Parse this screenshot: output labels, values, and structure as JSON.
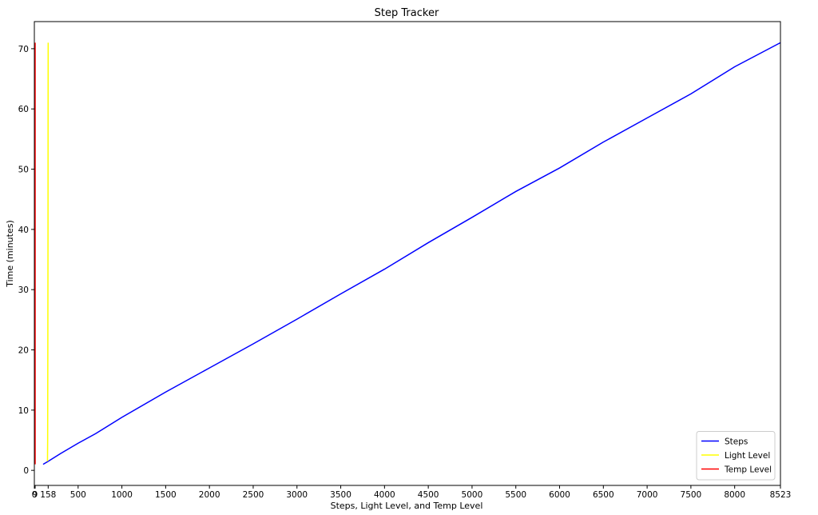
{
  "chart_data": {
    "type": "line",
    "title": "Step Tracker",
    "xlabel": "Steps, Light Level, and Temp Level",
    "ylabel": "Time (minutes)",
    "xlim": [
      0,
      8523
    ],
    "ylim": [
      -2.5,
      74.5
    ],
    "x_ticks": [
      0,
      9,
      158,
      500,
      1000,
      1500,
      2000,
      2500,
      3000,
      3500,
      4000,
      4500,
      5000,
      5500,
      6000,
      6500,
      7000,
      7500,
      8000,
      8523
    ],
    "x_tick_labels": [
      "0",
      "9",
      "158",
      "500",
      "1000",
      "1500",
      "2000",
      "2500",
      "3000",
      "3500",
      "4000",
      "4500",
      "5000",
      "5500",
      "6000",
      "6500",
      "7000",
      "7500",
      "8000",
      "8523"
    ],
    "y_ticks": [
      0,
      10,
      20,
      30,
      40,
      50,
      60,
      70
    ],
    "y_tick_labels": [
      "0",
      "10",
      "20",
      "30",
      "40",
      "50",
      "60",
      "70"
    ],
    "grid": false,
    "legend_position": "bottom-right",
    "series": [
      {
        "name": "Steps",
        "color": "#0000ff",
        "points": [
          [
            100,
            1
          ],
          [
            158,
            1.5
          ],
          [
            300,
            2.8
          ],
          [
            500,
            4.5
          ],
          [
            700,
            6.1
          ],
          [
            1000,
            8.8
          ],
          [
            1500,
            13.0
          ],
          [
            2000,
            17.0
          ],
          [
            2500,
            21.0
          ],
          [
            3000,
            25.1
          ],
          [
            3500,
            29.3
          ],
          [
            4000,
            33.4
          ],
          [
            4500,
            37.8
          ],
          [
            5000,
            42.0
          ],
          [
            5500,
            46.3
          ],
          [
            6000,
            50.2
          ],
          [
            6500,
            54.5
          ],
          [
            7000,
            58.5
          ],
          [
            7500,
            62.5
          ],
          [
            8000,
            67.0
          ],
          [
            8523,
            71.0
          ]
        ]
      },
      {
        "name": "Light Level",
        "color": "#ffff00",
        "points": [
          [
            150,
            1.5
          ],
          [
            152,
            5
          ],
          [
            154,
            20
          ],
          [
            156,
            40
          ],
          [
            157,
            60
          ],
          [
            158,
            71
          ]
        ]
      },
      {
        "name": "Temp Level",
        "color": "#ff0000",
        "points": [
          [
            9,
            1
          ],
          [
            9,
            71
          ]
        ]
      }
    ]
  }
}
